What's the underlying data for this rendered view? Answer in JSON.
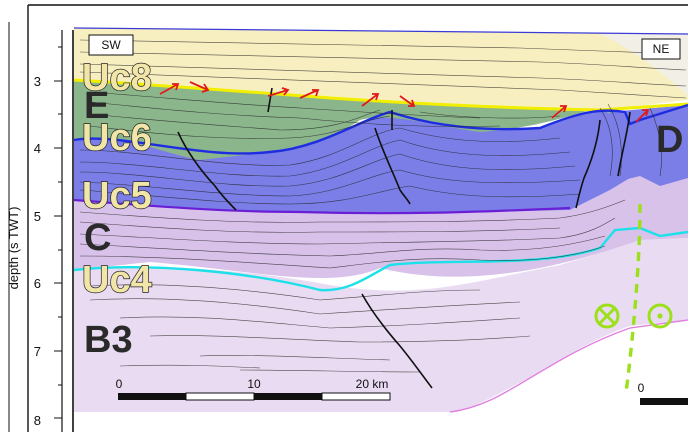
{
  "axis": {
    "title": "depth (s TWT)",
    "ticks": [
      "3",
      "4",
      "5",
      "6",
      "7",
      "8"
    ]
  },
  "directions": {
    "left": "SW",
    "right": "NE"
  },
  "units": [
    {
      "id": "uc8",
      "label": "Uc8",
      "color": "#f1e6a8"
    },
    {
      "id": "e",
      "label": "E",
      "color": "#2a2a2a"
    },
    {
      "id": "uc6",
      "label": "Uc6",
      "color": "#f1e6a8"
    },
    {
      "id": "uc5",
      "label": "Uc5",
      "color": "#f1e6a8"
    },
    {
      "id": "c",
      "label": "C",
      "color": "#2a2a2a"
    },
    {
      "id": "uc4",
      "label": "Uc4",
      "color": "#f1e6a8"
    },
    {
      "id": "b3",
      "label": "B3",
      "color": "#2a2a2a"
    },
    {
      "id": "d",
      "label": "D",
      "color": "#2a2a2a"
    }
  ],
  "scale_bar": {
    "labels": [
      "0",
      "10",
      "20 km"
    ],
    "right_label": "0"
  },
  "colors": {
    "yellow_unit": "#f8efc0",
    "green_unit": "#8bb58b",
    "blue_unit": "#7a7ee6",
    "lilac_unit": "#d9c2ea",
    "pale_lilac_unit": "#e9dcf2",
    "yellow_horizon": "#f2ee00",
    "blue_horizon": "#1f2de0",
    "purple_horizon": "#6a1fd6",
    "cyan_horizon": "#1ee0e8",
    "fault_arrows": "#e01a1a",
    "strike_slip_symbol": "#9be01a"
  }
}
